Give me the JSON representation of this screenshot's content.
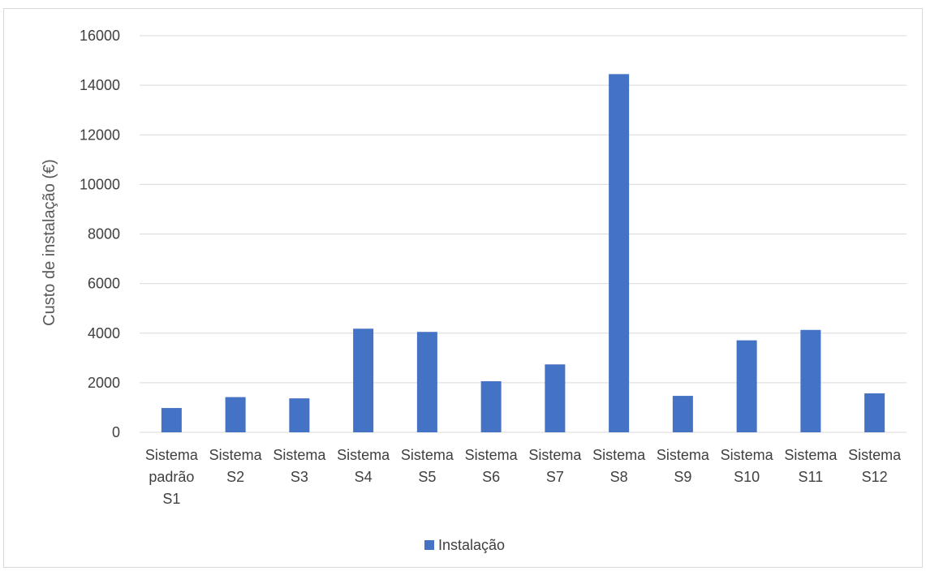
{
  "chart_data": {
    "type": "bar",
    "title": "",
    "xlabel": "",
    "ylabel": "Custo de instalação (€)",
    "ylim": [
      0,
      16000
    ],
    "yticks": [
      0,
      2000,
      4000,
      6000,
      8000,
      10000,
      12000,
      14000,
      16000
    ],
    "grid": true,
    "legend_position": "bottom",
    "categories": [
      [
        "Sistema",
        "padrão",
        "S1"
      ],
      [
        "Sistema",
        "S2"
      ],
      [
        "Sistema",
        "S3"
      ],
      [
        "Sistema",
        "S4"
      ],
      [
        "Sistema",
        "S5"
      ],
      [
        "Sistema",
        "S6"
      ],
      [
        "Sistema",
        "S7"
      ],
      [
        "Sistema",
        "S8"
      ],
      [
        "Sistema",
        "S9"
      ],
      [
        "Sistema",
        "S10"
      ],
      [
        "Sistema",
        "S11"
      ],
      [
        "Sistema",
        "S12"
      ]
    ],
    "series": [
      {
        "name": "Instalação",
        "color": "#4472c4",
        "values": [
          980,
          1420,
          1370,
          4180,
          4050,
          2060,
          2740,
          14450,
          1470,
          3710,
          4130,
          1570
        ]
      }
    ]
  }
}
